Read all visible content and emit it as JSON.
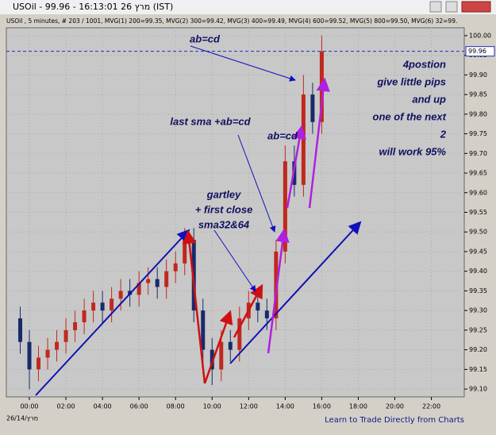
{
  "window_title": "USOil - 99.96 - 16:13:01 26 מרץ (IST)",
  "chart_data": {
    "type": "candlestick",
    "header": "USOil , 5 minutes, # 203 / 1001, MVG(1) 200=99.35, MVG(2) 300=99.42, MVG(3) 400=99.49, MVG(4) 600=99.52, MVG(5) 800=99.50, MVG(6) 32=99.",
    "x": [
      -0.5,
      0,
      0.5,
      1,
      1.5,
      2,
      2.5,
      3,
      3.5,
      4,
      4.5,
      5,
      5.5,
      6,
      6.5,
      7,
      7.5,
      8,
      8.5,
      9,
      9.5,
      10,
      10.5,
      11,
      11.5,
      12,
      12.5,
      13,
      13.5,
      14,
      14.5,
      15,
      15.5,
      16
    ],
    "open": [
      99.28,
      99.22,
      99.15,
      99.18,
      99.2,
      99.22,
      99.25,
      99.27,
      99.3,
      99.32,
      99.3,
      99.33,
      99.35,
      99.34,
      99.37,
      99.38,
      99.36,
      99.4,
      99.42,
      99.48,
      99.3,
      99.2,
      99.15,
      99.22,
      99.2,
      99.28,
      99.32,
      99.3,
      99.28,
      99.45,
      99.68,
      99.62,
      99.85,
      99.78
    ],
    "high": [
      99.31,
      99.25,
      99.21,
      99.23,
      99.25,
      99.28,
      99.3,
      99.33,
      99.35,
      99.35,
      99.36,
      99.38,
      99.38,
      99.4,
      99.41,
      99.41,
      99.43,
      99.45,
      99.51,
      99.51,
      99.33,
      99.23,
      99.25,
      99.25,
      99.31,
      99.35,
      99.35,
      99.33,
      99.48,
      99.72,
      99.72,
      99.9,
      99.88,
      100.0
    ],
    "low": [
      99.19,
      99.1,
      99.12,
      99.15,
      99.17,
      99.19,
      99.22,
      99.24,
      99.27,
      99.27,
      99.27,
      99.3,
      99.31,
      99.31,
      99.34,
      99.33,
      99.33,
      99.37,
      99.39,
      99.27,
      99.17,
      99.11,
      99.12,
      99.17,
      99.17,
      99.25,
      99.27,
      99.25,
      99.25,
      99.42,
      99.59,
      99.59,
      99.75,
      99.75
    ],
    "close": [
      99.22,
      99.15,
      99.18,
      99.2,
      99.22,
      99.25,
      99.27,
      99.3,
      99.32,
      99.3,
      99.33,
      99.35,
      99.34,
      99.37,
      99.38,
      99.36,
      99.4,
      99.42,
      99.48,
      99.3,
      99.2,
      99.15,
      99.22,
      99.2,
      99.28,
      99.32,
      99.3,
      99.28,
      99.45,
      99.68,
      99.62,
      99.85,
      99.78,
      99.96
    ],
    "up_color": "#c0281e",
    "down_color": "#1a2a6a",
    "last_price": 99.96,
    "xlim": [
      -1.26,
      23.8
    ],
    "ylim": [
      99.08,
      100.02
    ],
    "xticks": [
      {
        "value": 0,
        "label": "00:00"
      },
      {
        "value": 2,
        "label": "02:00"
      },
      {
        "value": 4,
        "label": "04:00"
      },
      {
        "value": 6,
        "label": "06:00"
      },
      {
        "value": 8,
        "label": "08:00"
      },
      {
        "value": 10,
        "label": "10:00"
      },
      {
        "value": 12,
        "label": "12:00"
      },
      {
        "value": 14,
        "label": "14:00"
      },
      {
        "value": 16,
        "label": "16:00"
      },
      {
        "value": 18,
        "label": "18:00"
      },
      {
        "value": 20,
        "label": "20:00"
      },
      {
        "value": 22,
        "label": "22:00"
      }
    ],
    "yticks": [
      {
        "value": 99.1,
        "label": "99.10"
      },
      {
        "value": 99.15,
        "label": "99.15"
      },
      {
        "value": 99.2,
        "label": "99.20"
      },
      {
        "value": 99.25,
        "label": "99.25"
      },
      {
        "value": 99.3,
        "label": "99.30"
      },
      {
        "value": 99.35,
        "label": "99.35"
      },
      {
        "value": 99.4,
        "label": "99.40"
      },
      {
        "value": 99.45,
        "label": "99.45"
      },
      {
        "value": 99.5,
        "label": "99.50"
      },
      {
        "value": 99.55,
        "label": "99.55"
      },
      {
        "value": 99.6,
        "label": "99.60"
      },
      {
        "value": 99.65,
        "label": "99.65"
      },
      {
        "value": 99.7,
        "label": "99.70"
      },
      {
        "value": 99.75,
        "label": "99.75"
      },
      {
        "value": 99.8,
        "label": "99.80"
      },
      {
        "value": 99.85,
        "label": "99.85"
      },
      {
        "value": 99.9,
        "label": "99.90"
      },
      {
        "value": 99.95,
        "label": "99.95"
      },
      {
        "value": 100,
        "label": "100.00"
      }
    ],
    "grid": true,
    "date_label": "26/14/מרץ",
    "footer": "Learn to Trade Directly from Charts",
    "annotations": [
      [
        "ab=cd"
      ],
      [
        "4postion",
        "give little pips",
        "and up",
        "one of the next",
        "2",
        "will work 95%"
      ],
      [
        "last sma +ab=cd"
      ],
      [
        "ab=cd"
      ],
      [
        "gartley",
        "+ first close",
        "sma32&64"
      ]
    ]
  }
}
